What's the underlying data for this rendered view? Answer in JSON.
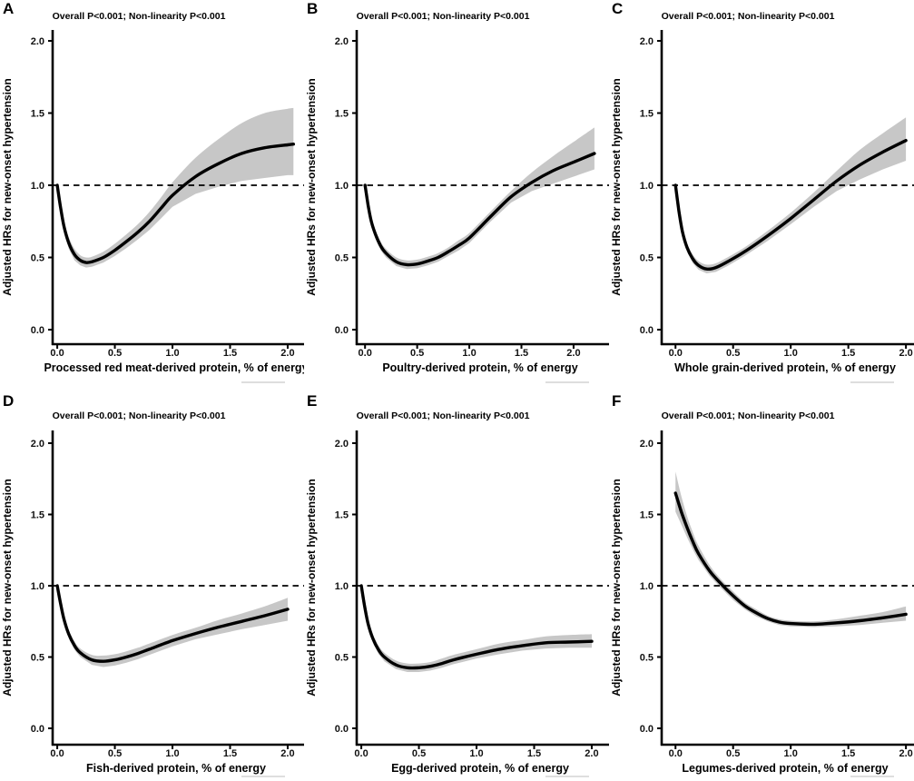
{
  "figure": {
    "background": "#ffffff",
    "curve_color": "#000000",
    "band_color": "#c7c7c7",
    "axis_color": "#000000",
    "ref_line_style": "dashed"
  },
  "shared": {
    "ylabel": "Adjusted HRs for new-onset hypertension",
    "y_ticks": [
      0,
      0.5,
      1,
      1.5,
      2
    ],
    "x_ticks": [
      0,
      0.5,
      1,
      1.5,
      2
    ]
  },
  "chart_data": [
    {
      "type": "line",
      "panel_letter": "A",
      "stats": "Overall P<0.001; Non-linearity P<0.001",
      "xlabel": "Processed red meat-derived protein, % of energy",
      "ylabel": "Adjusted HRs for new-onset hypertension",
      "ylim": [
        0,
        2
      ],
      "xlim": [
        -0.04,
        2.15
      ],
      "ref_line": 1.0,
      "x": [
        0,
        0.03,
        0.06,
        0.1,
        0.15,
        0.2,
        0.25,
        0.3,
        0.4,
        0.5,
        0.6,
        0.7,
        0.8,
        0.9,
        1.0,
        1.2,
        1.4,
        1.6,
        1.8,
        2.0,
        2.05
      ],
      "hr": [
        1.0,
        0.84,
        0.71,
        0.6,
        0.52,
        0.48,
        0.465,
        0.47,
        0.5,
        0.55,
        0.61,
        0.675,
        0.75,
        0.84,
        0.93,
        1.06,
        1.15,
        1.22,
        1.26,
        1.28,
        1.285
      ],
      "lower": [
        1.0,
        0.8,
        0.67,
        0.56,
        0.48,
        0.445,
        0.43,
        0.435,
        0.465,
        0.51,
        0.565,
        0.625,
        0.69,
        0.77,
        0.85,
        0.94,
        0.99,
        1.03,
        1.05,
        1.07,
        1.07
      ],
      "upper": [
        1.0,
        0.88,
        0.75,
        0.64,
        0.56,
        0.515,
        0.5,
        0.505,
        0.54,
        0.595,
        0.66,
        0.73,
        0.815,
        0.915,
        1.02,
        1.19,
        1.32,
        1.43,
        1.5,
        1.53,
        1.535
      ]
    },
    {
      "type": "line",
      "panel_letter": "B",
      "stats": "Overall P<0.001; Non-linearity P<0.001",
      "xlabel": "Poultry-derived protein, % of energy",
      "ylabel": "Adjusted HRs for new-onset hypertension",
      "ylim": [
        0,
        2
      ],
      "xlim": [
        -0.08,
        2.34
      ],
      "ref_line": 1.0,
      "x": [
        0,
        0.03,
        0.06,
        0.1,
        0.15,
        0.2,
        0.3,
        0.4,
        0.5,
        0.6,
        0.7,
        0.8,
        0.9,
        1.0,
        1.2,
        1.4,
        1.6,
        1.8,
        2.0,
        2.2
      ],
      "hr": [
        1.0,
        0.86,
        0.75,
        0.66,
        0.58,
        0.53,
        0.47,
        0.45,
        0.455,
        0.475,
        0.5,
        0.54,
        0.585,
        0.635,
        0.78,
        0.92,
        1.02,
        1.1,
        1.16,
        1.22
      ],
      "lower": [
        1.0,
        0.83,
        0.72,
        0.63,
        0.55,
        0.5,
        0.44,
        0.42,
        0.425,
        0.445,
        0.47,
        0.51,
        0.55,
        0.6,
        0.745,
        0.88,
        0.96,
        1.01,
        1.06,
        1.11
      ],
      "upper": [
        1.0,
        0.89,
        0.78,
        0.69,
        0.61,
        0.56,
        0.5,
        0.48,
        0.485,
        0.505,
        0.53,
        0.57,
        0.62,
        0.67,
        0.815,
        0.96,
        1.09,
        1.2,
        1.3,
        1.4
      ]
    },
    {
      "type": "line",
      "panel_letter": "C",
      "stats": "Overall P<0.001; Non-linearity P<0.001",
      "xlabel": "Whole grain-derived protein, % of energy",
      "ylabel": "Adjusted HRs for new-onset hypertension",
      "ylim": [
        0,
        2
      ],
      "xlim": [
        -0.12,
        2.07
      ],
      "ref_line": 1.0,
      "x": [
        0,
        0.03,
        0.06,
        0.1,
        0.15,
        0.2,
        0.27,
        0.35,
        0.45,
        0.6,
        0.8,
        1.0,
        1.2,
        1.4,
        1.6,
        1.8,
        2.0
      ],
      "hr": [
        1.0,
        0.82,
        0.68,
        0.57,
        0.49,
        0.445,
        0.42,
        0.43,
        0.47,
        0.54,
        0.65,
        0.77,
        0.9,
        1.03,
        1.14,
        1.23,
        1.31
      ],
      "lower": [
        1.0,
        0.79,
        0.65,
        0.54,
        0.46,
        0.415,
        0.39,
        0.4,
        0.44,
        0.51,
        0.615,
        0.73,
        0.85,
        0.96,
        1.04,
        1.11,
        1.17
      ],
      "upper": [
        1.0,
        0.85,
        0.71,
        0.6,
        0.52,
        0.475,
        0.45,
        0.46,
        0.5,
        0.57,
        0.685,
        0.81,
        0.95,
        1.1,
        1.245,
        1.36,
        1.47
      ]
    },
    {
      "type": "line",
      "panel_letter": "D",
      "stats": "Overall P<0.001; Non-linearity P<0.001",
      "xlabel": "Fish-derived protein, % of energy",
      "ylabel": "Adjusted HRs for new-onset hypertension",
      "ylim": [
        0,
        2
      ],
      "xlim": [
        -0.04,
        2.15
      ],
      "ref_line": 1.0,
      "x": [
        0,
        0.03,
        0.06,
        0.1,
        0.15,
        0.2,
        0.3,
        0.4,
        0.5,
        0.6,
        0.7,
        0.8,
        1.0,
        1.2,
        1.4,
        1.6,
        1.8,
        2.0
      ],
      "hr": [
        1.0,
        0.87,
        0.76,
        0.66,
        0.58,
        0.53,
        0.48,
        0.47,
        0.48,
        0.5,
        0.525,
        0.555,
        0.615,
        0.665,
        0.71,
        0.75,
        0.79,
        0.835
      ],
      "lower": [
        1.0,
        0.84,
        0.73,
        0.63,
        0.55,
        0.5,
        0.445,
        0.43,
        0.44,
        0.46,
        0.485,
        0.515,
        0.575,
        0.625,
        0.66,
        0.695,
        0.725,
        0.755
      ],
      "upper": [
        1.0,
        0.9,
        0.79,
        0.69,
        0.61,
        0.56,
        0.515,
        0.51,
        0.52,
        0.54,
        0.565,
        0.595,
        0.655,
        0.705,
        0.76,
        0.805,
        0.855,
        0.915
      ]
    },
    {
      "type": "line",
      "panel_letter": "E",
      "stats": "Overall P<0.001; Non-linearity P<0.001",
      "xlabel": "Egg-derived protein, % of energy",
      "ylabel": "Adjusted HRs for new-onset hypertension",
      "ylim": [
        0,
        2
      ],
      "xlim": [
        -0.04,
        2.15
      ],
      "ref_line": 1.0,
      "x": [
        0,
        0.03,
        0.06,
        0.1,
        0.15,
        0.2,
        0.3,
        0.4,
        0.5,
        0.6,
        0.7,
        0.8,
        1.0,
        1.2,
        1.4,
        1.6,
        1.8,
        2.0
      ],
      "hr": [
        1.0,
        0.85,
        0.73,
        0.63,
        0.55,
        0.5,
        0.445,
        0.425,
        0.425,
        0.435,
        0.455,
        0.48,
        0.52,
        0.555,
        0.58,
        0.6,
        0.605,
        0.61
      ],
      "lower": [
        1.0,
        0.82,
        0.7,
        0.6,
        0.52,
        0.47,
        0.415,
        0.395,
        0.395,
        0.405,
        0.425,
        0.45,
        0.49,
        0.52,
        0.545,
        0.56,
        0.565,
        0.565
      ],
      "upper": [
        1.0,
        0.88,
        0.76,
        0.66,
        0.58,
        0.53,
        0.475,
        0.455,
        0.455,
        0.465,
        0.49,
        0.515,
        0.555,
        0.595,
        0.62,
        0.645,
        0.655,
        0.66
      ]
    },
    {
      "type": "line",
      "panel_letter": "F",
      "stats": "Overall P<0.001; Non-linearity P<0.001",
      "xlabel": "Legumes-derived protein, % of energy",
      "ylabel": "Adjusted HRs for new-onset hypertension",
      "ylim": [
        0,
        2
      ],
      "xlim": [
        -0.12,
        2.07
      ],
      "ref_line": 1.0,
      "x": [
        0,
        0.05,
        0.1,
        0.15,
        0.2,
        0.3,
        0.4,
        0.5,
        0.6,
        0.7,
        0.8,
        0.9,
        1.0,
        1.2,
        1.4,
        1.6,
        1.8,
        2.0
      ],
      "hr": [
        1.65,
        1.52,
        1.41,
        1.31,
        1.225,
        1.1,
        1.01,
        0.93,
        0.86,
        0.81,
        0.77,
        0.745,
        0.735,
        0.73,
        0.74,
        0.755,
        0.775,
        0.8
      ],
      "lower": [
        1.52,
        1.43,
        1.34,
        1.255,
        1.18,
        1.065,
        0.98,
        0.9,
        0.835,
        0.785,
        0.75,
        0.725,
        0.715,
        0.71,
        0.715,
        0.725,
        0.74,
        0.755
      ],
      "upper": [
        1.8,
        1.63,
        1.49,
        1.375,
        1.28,
        1.14,
        1.04,
        0.96,
        0.885,
        0.835,
        0.79,
        0.765,
        0.755,
        0.75,
        0.765,
        0.79,
        0.815,
        0.855
      ]
    }
  ]
}
